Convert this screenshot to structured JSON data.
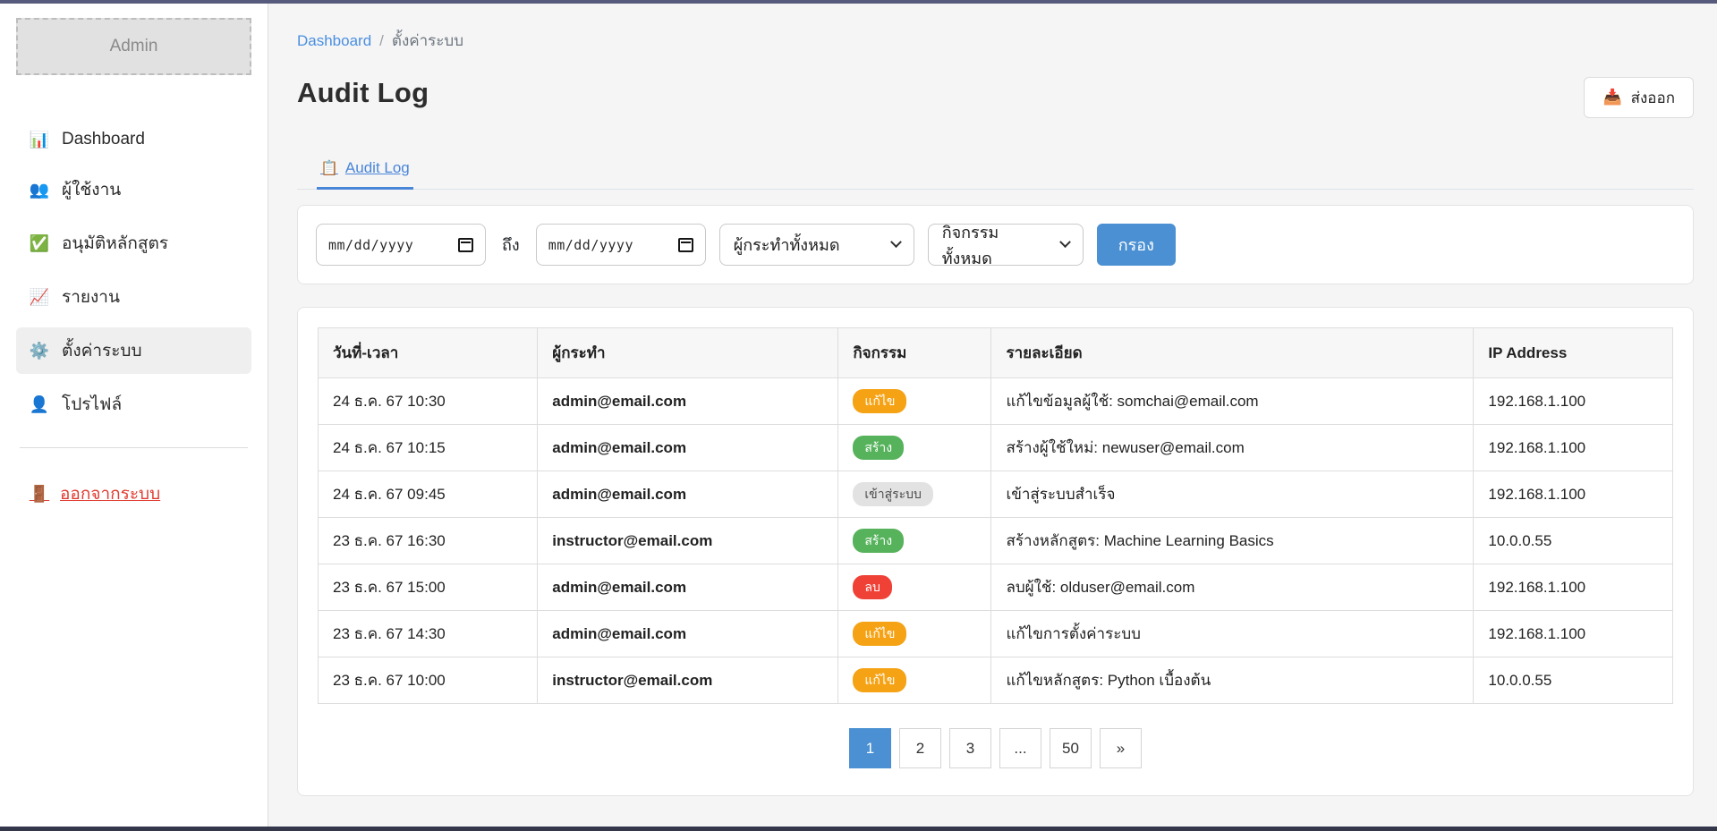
{
  "colors": {
    "accent_blue": "#4a90d2",
    "link_blue": "#4a8fe0",
    "topbar": "#565a7c",
    "badge_edit": "#f5a214",
    "badge_create": "#56b35c",
    "badge_delete": "#ef4136",
    "badge_login_bg": "#e2e2e2",
    "logout_red": "#e03c31"
  },
  "sidebar": {
    "brand": "Admin",
    "items": [
      {
        "key": "dashboard",
        "label": "Dashboard",
        "icon": "📊",
        "icon_name": "dashboard-icon",
        "active": false
      },
      {
        "key": "users",
        "label": "ผู้ใช้งาน",
        "icon": "👥",
        "icon_name": "users-icon",
        "active": false
      },
      {
        "key": "approve-courses",
        "label": "อนุมัติหลักสูตร",
        "icon": "✅",
        "icon_name": "approve-courses-icon",
        "active": false
      },
      {
        "key": "reports",
        "label": "รายงาน",
        "icon": "📈",
        "icon_name": "reports-icon",
        "active": false
      },
      {
        "key": "system-settings",
        "label": "ตั้งค่าระบบ",
        "icon": "⚙️",
        "icon_name": "settings-icon",
        "active": true
      },
      {
        "key": "profile",
        "label": "โปรไฟล์",
        "icon": "👤",
        "icon_name": "profile-icon",
        "active": false
      }
    ],
    "logout": {
      "label": "ออกจากระบบ",
      "icon": "🚪"
    }
  },
  "breadcrumb": {
    "home": "Dashboard",
    "separator": "/",
    "current": "ตั้งค่าระบบ"
  },
  "header": {
    "title": "Audit Log",
    "export_label": "ส่งออก",
    "export_icon": "📥"
  },
  "tabs": [
    {
      "label": "Audit Log",
      "icon": "📋",
      "active": true
    }
  ],
  "filters": {
    "date_from_placeholder": "mm/dd/yyyy",
    "to_label": "ถึง",
    "date_to_placeholder": "mm/dd/yyyy",
    "actor_selected": "ผู้กระทำทั้งหมด",
    "activity_selected": "กิจกรรมทั้งหมด",
    "submit_label": "กรอง"
  },
  "table": {
    "columns": [
      "วันที่-เวลา",
      "ผู้กระทำ",
      "กิจกรรม",
      "รายละเอียด",
      "IP Address"
    ],
    "col_widths": [
      "16.2%",
      "22.2%",
      "11.3%",
      "35.6%",
      "14.7%"
    ],
    "rows": [
      {
        "datetime": "24 ธ.ค. 67 10:30",
        "actor": "admin@email.com",
        "action": {
          "label": "แก้ไข",
          "variant": "edit"
        },
        "details": "แก้ไขข้อมูลผู้ใช้: somchai@email.com",
        "ip": "192.168.1.100"
      },
      {
        "datetime": "24 ธ.ค. 67 10:15",
        "actor": "admin@email.com",
        "action": {
          "label": "สร้าง",
          "variant": "create"
        },
        "details": "สร้างผู้ใช้ใหม่: newuser@email.com",
        "ip": "192.168.1.100"
      },
      {
        "datetime": "24 ธ.ค. 67 09:45",
        "actor": "admin@email.com",
        "action": {
          "label": "เข้าสู่ระบบ",
          "variant": "login"
        },
        "details": "เข้าสู่ระบบสำเร็จ",
        "ip": "192.168.1.100"
      },
      {
        "datetime": "23 ธ.ค. 67 16:30",
        "actor": "instructor@email.com",
        "action": {
          "label": "สร้าง",
          "variant": "create"
        },
        "details": "สร้างหลักสูตร: Machine Learning Basics",
        "ip": "10.0.0.55"
      },
      {
        "datetime": "23 ธ.ค. 67 15:00",
        "actor": "admin@email.com",
        "action": {
          "label": "ลบ",
          "variant": "delete"
        },
        "details": "ลบผู้ใช้: olduser@email.com",
        "ip": "192.168.1.100"
      },
      {
        "datetime": "23 ธ.ค. 67 14:30",
        "actor": "admin@email.com",
        "action": {
          "label": "แก้ไข",
          "variant": "edit"
        },
        "details": "แก้ไขการตั้งค่าระบบ",
        "ip": "192.168.1.100"
      },
      {
        "datetime": "23 ธ.ค. 67 10:00",
        "actor": "instructor@email.com",
        "action": {
          "label": "แก้ไข",
          "variant": "edit"
        },
        "details": "แก้ไขหลักสูตร: Python เบื้องต้น",
        "ip": "10.0.0.55"
      }
    ]
  },
  "pagination": {
    "items": [
      {
        "label": "1",
        "active": true
      },
      {
        "label": "2",
        "active": false
      },
      {
        "label": "3",
        "active": false
      },
      {
        "label": "...",
        "active": false
      },
      {
        "label": "50",
        "active": false
      },
      {
        "label": "»",
        "active": false
      }
    ]
  }
}
